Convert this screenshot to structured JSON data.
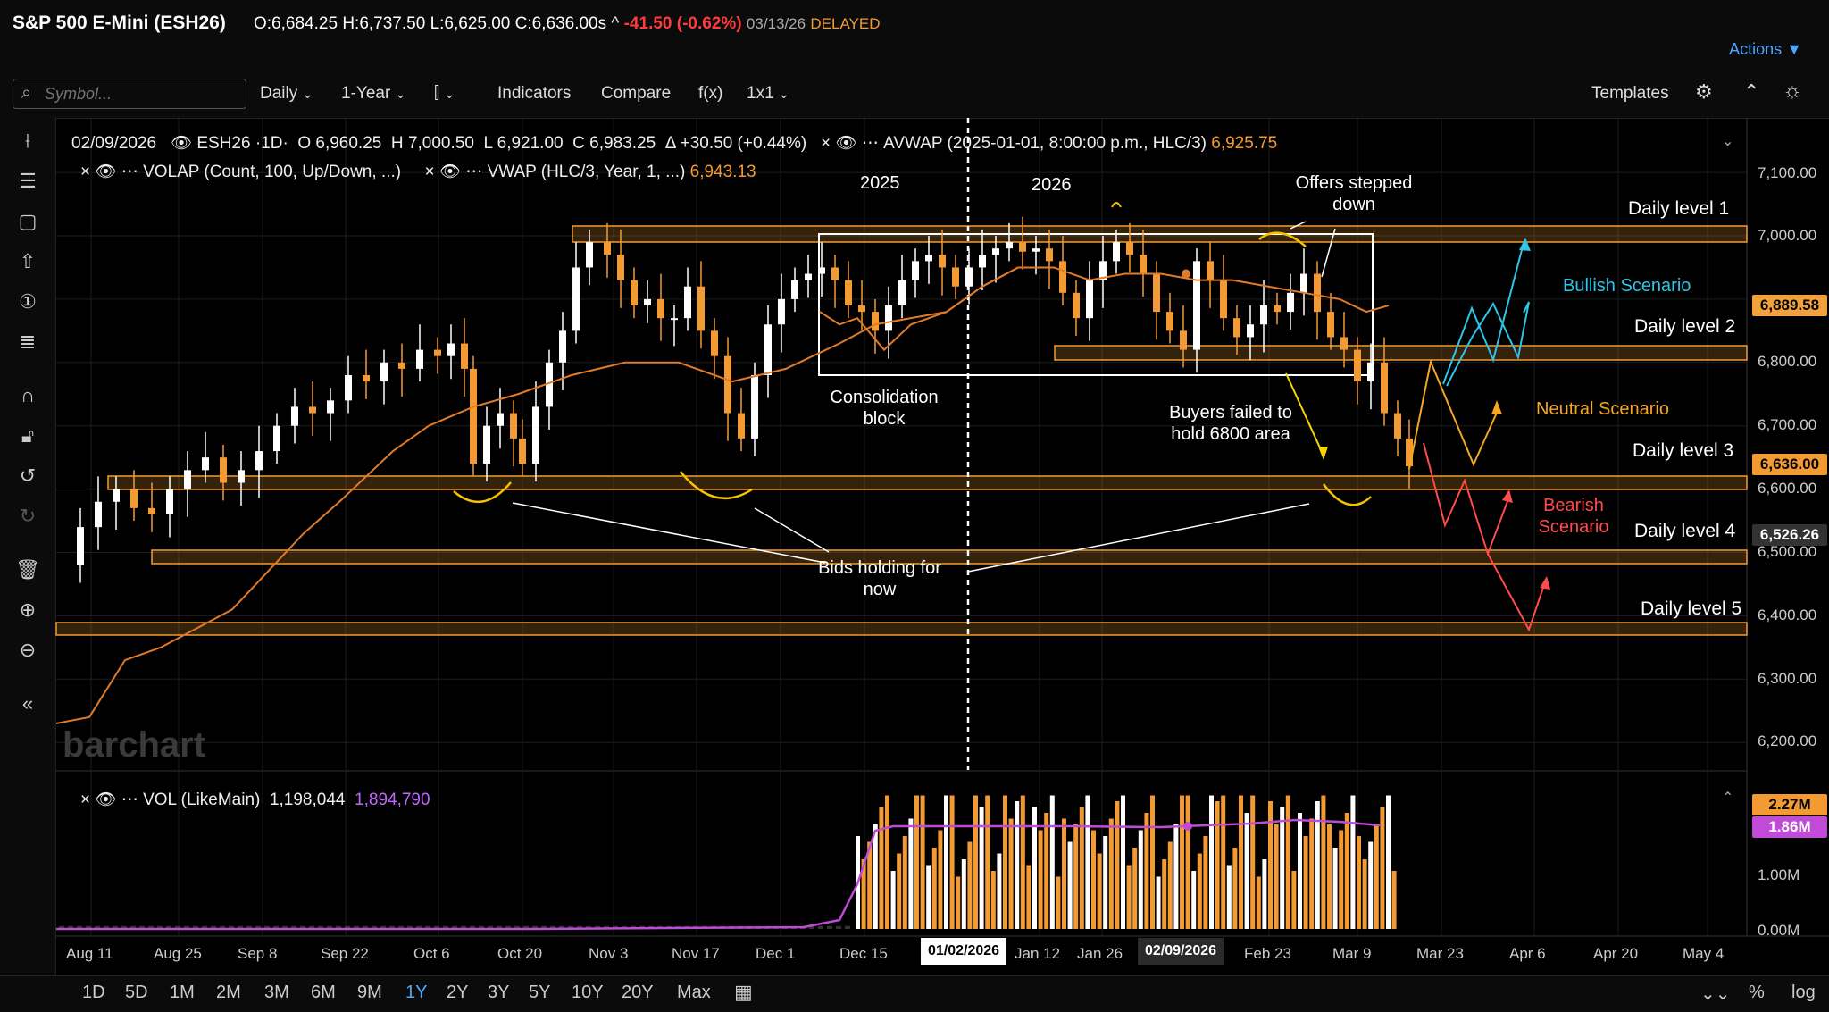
{
  "header": {
    "title": "S&P 500 E-Mini (ESH26)",
    "open": "O:6,684.25",
    "high": "H:6,737.50",
    "low": "L:6,625.00",
    "close": "C:6,636.00s",
    "arrow": "^",
    "change": "-41.50 (-0.62%)",
    "date": "03/13/26",
    "status": "DELAYED",
    "actions": "Actions"
  },
  "toolbar": {
    "search_placeholder": "Symbol...",
    "interval": "Daily",
    "range": "1-Year",
    "indicators": "Indicators",
    "compare": "Compare",
    "fx": "f(x)",
    "layout": "1x1",
    "templates": "Templates"
  },
  "legend": {
    "date": "02/09/2026",
    "symbol": "ESH26 ·1D·",
    "o_label": "O",
    "o": "6,960.25",
    "h_label": "H",
    "h": "7,000.50",
    "l_label": "L",
    "l": "6,921.00",
    "c_label": "C",
    "c": "6,983.25",
    "delta": "Δ +30.50 (+0.44%)",
    "avwap_label": "AVWAP (2025-01-01, 8:00:00 p.m., HLC/3)",
    "avwap_value": "6,925.75",
    "volap_label": "VOLAP (Count, 100, Up/Down, ...)",
    "vwap_label": "VWAP (HLC/3, Year, 1, ...)",
    "vwap_value": "6,943.13",
    "vol_label": "VOL (LikeMain)",
    "vol_value": "1,198,044",
    "vol_avg": "1,894,790"
  },
  "colors": {
    "up": "#ffffff",
    "down": "#f39a33",
    "ma": "#e07b2a",
    "vol_ma": "#c04bd6",
    "bull": "#2ec5e6",
    "neutral": "#f5a623",
    "bear": "#ff4b4b",
    "yellow": "#f5d800"
  },
  "annotations": {
    "year_2025": "2025",
    "year_2026": "2026",
    "consolidation": [
      "Consolidation",
      "block"
    ],
    "offers": [
      "Offers stepped",
      "down"
    ],
    "buyers": [
      "Buyers failed to",
      "hold 6800 area"
    ],
    "bids": [
      "Bids holding for",
      "now"
    ],
    "bullish": "Bullish Scenario",
    "neutral": "Neutral Scenario",
    "bearish": [
      "Bearish",
      "Scenario"
    ],
    "level1": "Daily level 1",
    "level2": "Daily level 2",
    "level3": "Daily level 3",
    "level4": "Daily level 4",
    "level5": "Daily level 5",
    "watermark": "barchart"
  },
  "price_axis": [
    "7,100.00",
    "7,000.00",
    "6,900.00",
    "6,800.00",
    "6,700.00",
    "6,600.00",
    "6,500.00",
    "6,400.00",
    "6,300.00",
    "6,200.00"
  ],
  "price_tags": {
    "t1": "6,889.58",
    "t2": "6,636.00",
    "t3": "6,526.26"
  },
  "vol_axis": [
    "1.00M",
    "0.00M"
  ],
  "vol_tags": {
    "t1": "2.27M",
    "t2": "1.86M"
  },
  "date_axis": [
    "Aug 11",
    "Aug 25",
    "Sep 8",
    "Sep 22",
    "Oct 6",
    "Oct 20",
    "Nov 3",
    "Nov 17",
    "Dec 1",
    "Dec 15",
    "Jan 12",
    "Jan 26",
    "Feb 23",
    "Mar 9",
    "Mar 23",
    "Apr 6",
    "Apr 20",
    "May 4"
  ],
  "date_boxes": {
    "d1": "01/02/2026",
    "d2": "02/09/2026"
  },
  "ranges": [
    "1D",
    "5D",
    "1M",
    "2M",
    "3M",
    "6M",
    "9M",
    "1Y",
    "2Y",
    "3Y",
    "5Y",
    "10Y",
    "20Y",
    "Max"
  ],
  "active_range": "1Y",
  "bottom_right": {
    "pct": "%",
    "log": "log"
  },
  "chart_data": {
    "type": "candlestick",
    "daily_levels": [
      7010,
      6810,
      6610,
      6500,
      6385
    ],
    "consolidation_box": {
      "top": 7005,
      "bottom": 6780
    }
  }
}
